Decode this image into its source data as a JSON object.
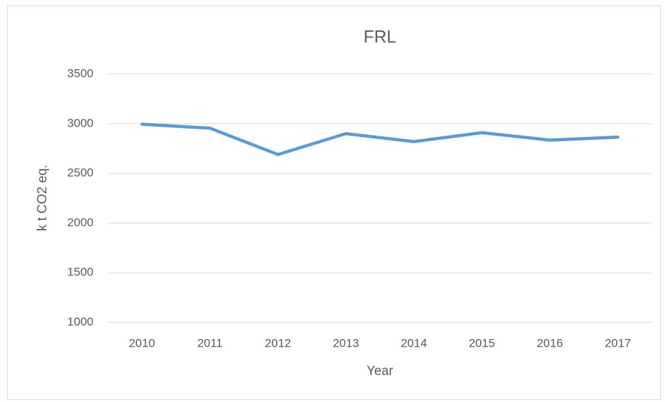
{
  "chart_data": {
    "type": "line",
    "title": "FRL",
    "x_label": "Year",
    "y_label": "k t CO2 eq.",
    "categories": [
      "2010",
      "2011",
      "2012",
      "2013",
      "2014",
      "2015",
      "2016",
      "2017"
    ],
    "values": [
      2995,
      2955,
      2690,
      2900,
      2820,
      2910,
      2835,
      2865
    ],
    "color": "#5b9bd5",
    "ylim": [
      1000,
      3500
    ],
    "yticks": [
      1000,
      1500,
      2000,
      2500,
      3000,
      3500
    ],
    "grid": true
  }
}
